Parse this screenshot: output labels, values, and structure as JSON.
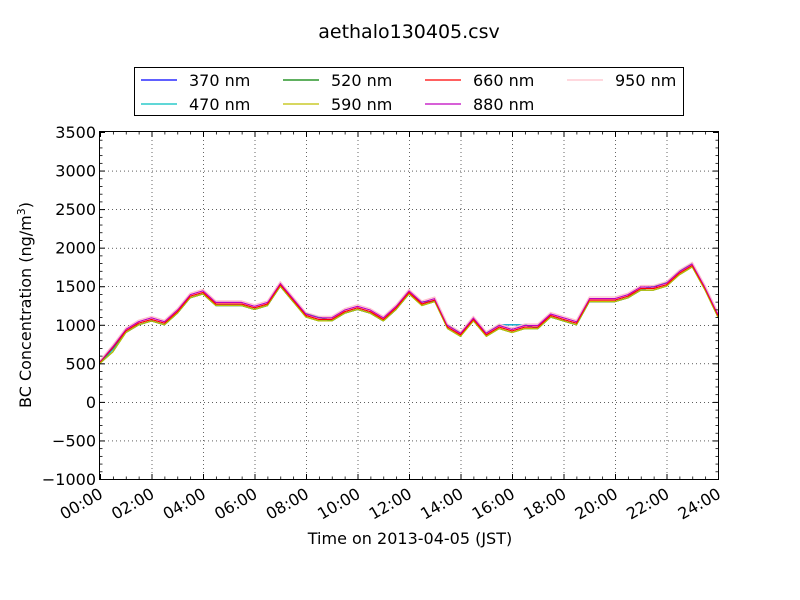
{
  "chart_data": {
    "type": "line",
    "title": "aethalo130405.csv",
    "xlabel": "Time on 2013-04-05 (JST)",
    "ylabel": "BC Concentration (ng/m",
    "ylabel_sup": "3",
    "ylabel_end": ")",
    "xlim": [
      "00:00",
      "24:00"
    ],
    "ylim": [
      -1000,
      3500
    ],
    "grid": true,
    "legend_position": "top-center",
    "x_ticks": [
      "00:00",
      "02:00",
      "04:00",
      "06:00",
      "08:00",
      "10:00",
      "12:00",
      "14:00",
      "16:00",
      "18:00",
      "20:00",
      "22:00",
      "24:00"
    ],
    "y_ticks": [
      -1000,
      -500,
      0,
      500,
      1000,
      1500,
      2000,
      2500,
      3000,
      3500
    ],
    "x": [
      "00:00",
      "00:30",
      "01:00",
      "01:30",
      "02:00",
      "02:30",
      "03:00",
      "03:30",
      "04:00",
      "04:30",
      "05:00",
      "05:30",
      "06:00",
      "06:30",
      "07:00",
      "07:30",
      "08:00",
      "08:30",
      "09:00",
      "09:30",
      "10:00",
      "10:30",
      "11:00",
      "11:30",
      "12:00",
      "12:30",
      "13:00",
      "13:30",
      "14:00",
      "14:30",
      "15:00",
      "15:30",
      "16:00",
      "16:30",
      "17:00",
      "17:30",
      "18:00",
      "18:30",
      "19:00",
      "19:30",
      "20:00",
      "20:30",
      "21:00",
      "21:30",
      "22:00",
      "22:30",
      "23:00",
      "23:30",
      "24:00"
    ],
    "series": [
      {
        "name": "370 nm",
        "color": "#0000ff",
        "values": [
          500,
          700,
          900,
          1000,
          1050,
          1000,
          1150,
          1350,
          1400,
          1250,
          1250,
          1250,
          1200,
          1250,
          1500,
          1300,
          1150,
          1100,
          1050,
          1150,
          1200,
          1150,
          1050,
          1200,
          1400,
          1300,
          1300,
          1000,
          900,
          1050,
          900,
          1000,
          1000,
          1000,
          950,
          1100,
          1050,
          1000,
          1300,
          1300,
          1300,
          1350,
          1450,
          1500,
          1550,
          1700,
          1800,
          1500,
          1100
        ]
      },
      {
        "name": "470 nm",
        "color": "#00bfbf",
        "values": [
          500,
          680,
          900,
          1000,
          1050,
          1000,
          1150,
          1350,
          1400,
          1250,
          1250,
          1250,
          1200,
          1250,
          1500,
          1300,
          1150,
          1100,
          1050,
          1150,
          1200,
          1150,
          1050,
          1200,
          1400,
          1300,
          1300,
          1000,
          900,
          1050,
          900,
          1000,
          1000,
          1000,
          950,
          1100,
          1050,
          1000,
          1300,
          1300,
          1300,
          1350,
          1450,
          1500,
          1550,
          1700,
          1800,
          1500,
          1100
        ]
      },
      {
        "name": "520 nm",
        "color": "#008000",
        "values": [
          500,
          650,
          900,
          1000,
          1050,
          1000,
          1150,
          1350,
          1400,
          1250,
          1250,
          1250,
          1200,
          1250,
          1500,
          1300,
          1100,
          1050,
          1050,
          1150,
          1200,
          1150,
          1050,
          1200,
          1400,
          1250,
          1300,
          950,
          850,
          1050,
          850,
          950,
          900,
          950,
          950,
          1100,
          1050,
          1000,
          1300,
          1300,
          1300,
          1350,
          1450,
          1450,
          1500,
          1650,
          1750,
          1450,
          1100
        ]
      },
      {
        "name": "590 nm",
        "color": "#bfbf00",
        "values": [
          500,
          650,
          900,
          1000,
          1050,
          1000,
          1150,
          1350,
          1400,
          1250,
          1250,
          1250,
          1200,
          1250,
          1500,
          1300,
          1100,
          1050,
          1050,
          1150,
          1200,
          1150,
          1050,
          1200,
          1400,
          1250,
          1300,
          950,
          850,
          1050,
          850,
          950,
          900,
          950,
          950,
          1100,
          1050,
          1000,
          1300,
          1300,
          1300,
          1350,
          1450,
          1450,
          1500,
          1650,
          1750,
          1450,
          1100
        ]
      },
      {
        "name": "660 nm",
        "color": "#ff0000",
        "values": [
          520,
          700,
          920,
          1020,
          1070,
          1020,
          1170,
          1370,
          1420,
          1270,
          1270,
          1270,
          1220,
          1270,
          1520,
          1320,
          1120,
          1070,
          1070,
          1170,
          1220,
          1170,
          1070,
          1220,
          1420,
          1270,
          1320,
          970,
          870,
          1070,
          870,
          970,
          920,
          970,
          970,
          1120,
          1070,
          1020,
          1320,
          1320,
          1320,
          1370,
          1470,
          1470,
          1520,
          1670,
          1770,
          1470,
          1120
        ]
      },
      {
        "name": "880 nm",
        "color": "#bf00bf",
        "values": [
          530,
          720,
          940,
          1040,
          1090,
          1040,
          1190,
          1390,
          1440,
          1290,
          1290,
          1290,
          1240,
          1290,
          1540,
          1340,
          1140,
          1090,
          1090,
          1190,
          1240,
          1190,
          1090,
          1240,
          1440,
          1290,
          1340,
          990,
          890,
          1090,
          890,
          990,
          940,
          990,
          990,
          1140,
          1090,
          1040,
          1340,
          1340,
          1340,
          1390,
          1490,
          1490,
          1540,
          1690,
          1790,
          1490,
          1140
        ]
      },
      {
        "name": "950 nm",
        "color": "#ffc0cb",
        "values": [
          540,
          740,
          960,
          1060,
          1110,
          1060,
          1210,
          1410,
          1460,
          1310,
          1310,
          1310,
          1260,
          1310,
          1560,
          1360,
          1160,
          1110,
          1110,
          1210,
          1260,
          1210,
          1110,
          1260,
          1460,
          1310,
          1360,
          1010,
          910,
          1110,
          910,
          1010,
          960,
          1010,
          1010,
          1160,
          1110,
          1060,
          1360,
          1360,
          1360,
          1410,
          1510,
          1510,
          1560,
          1710,
          1810,
          1510,
          1160
        ]
      }
    ]
  }
}
